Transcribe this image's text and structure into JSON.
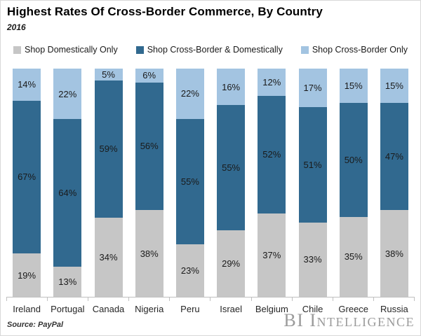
{
  "header": {
    "title": "Highest Rates Of Cross-Border Commerce, By Country",
    "subtitle": "2016"
  },
  "chart_data": {
    "type": "bar",
    "stacked": true,
    "percent_total": true,
    "title": "Highest Rates Of Cross-Border Commerce, By Country",
    "subtitle": "2016",
    "categories": [
      "Ireland",
      "Portugal",
      "Canada",
      "Nigeria",
      "Peru",
      "Israel",
      "Belgium",
      "Chile",
      "Greece",
      "Russia"
    ],
    "series": [
      {
        "name": "Shop Domestically Only",
        "color": "#c6c6c6",
        "values": [
          19,
          13,
          34,
          38,
          23,
          29,
          37,
          33,
          35,
          38
        ]
      },
      {
        "name": "Shop Cross-Border & Domestically",
        "color": "#31698f",
        "values": [
          67,
          64,
          59,
          56,
          55,
          55,
          52,
          51,
          50,
          47
        ]
      },
      {
        "name": "Shop Cross-Border Only",
        "color": "#a3c4e1",
        "values": [
          14,
          22,
          5,
          6,
          22,
          16,
          12,
          17,
          15,
          15
        ]
      }
    ],
    "value_suffix": "%",
    "ylim": [
      0,
      100
    ],
    "grid": false,
    "legend_position": "top",
    "axis_color": "#c0c0c0"
  },
  "footer": {
    "source": "Source: PayPal",
    "brand": "BI Intelligence"
  }
}
